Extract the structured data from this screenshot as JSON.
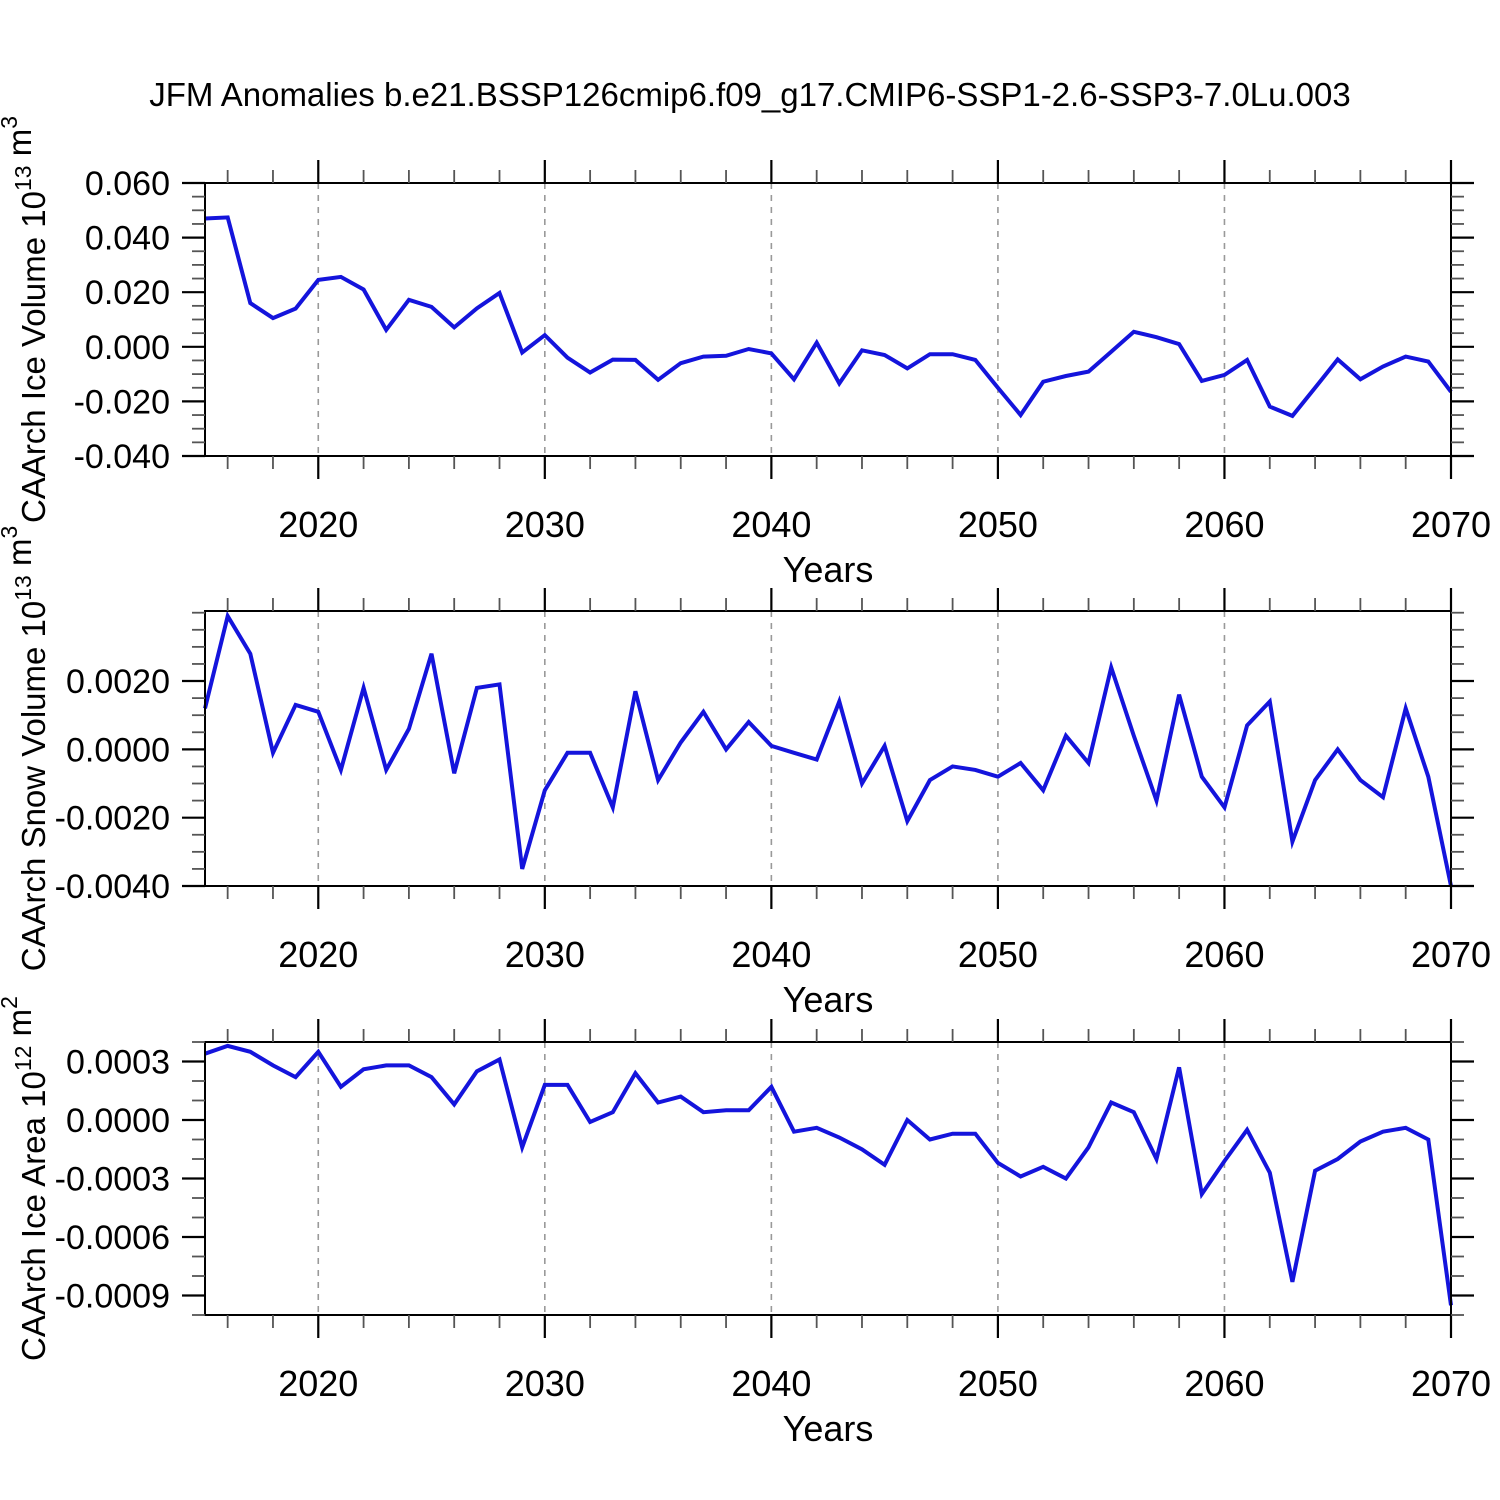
{
  "title": "JFM Anomalies b.e21.BSSP126cmip6.f09_g17.CMIP6-SSP1-2.6-SSP3-7.0Lu.003",
  "chart_data": {
    "type": "line",
    "title": "JFM Anomalies b.e21.BSSP126cmip6.f09_g17.CMIP6-SSP1-2.6-SSP3-7.0Lu.003",
    "line_color": "#1414dc",
    "grid_color": "#999999",
    "axis_color": "#000000",
    "minor_tick_color": "#555555",
    "grid_on": true,
    "years": [
      2015,
      2016,
      2017,
      2018,
      2019,
      2020,
      2021,
      2022,
      2023,
      2024,
      2025,
      2026,
      2027,
      2028,
      2029,
      2030,
      2031,
      2032,
      2033,
      2034,
      2035,
      2036,
      2037,
      2038,
      2039,
      2040,
      2041,
      2042,
      2043,
      2044,
      2045,
      2046,
      2047,
      2048,
      2049,
      2050,
      2051,
      2052,
      2053,
      2054,
      2055,
      2056,
      2057,
      2058,
      2059,
      2060,
      2061,
      2062,
      2063,
      2064,
      2065,
      2066,
      2067,
      2068,
      2069,
      2070
    ],
    "x_axis": {
      "label": "Years",
      "range": [
        2015,
        2070
      ],
      "major_ticks": [
        2020,
        2030,
        2040,
        2050,
        2060,
        2070
      ],
      "major_tick_labels": [
        "2020",
        "2030",
        "2040",
        "2050",
        "2060",
        "2070"
      ],
      "minor_step": 2,
      "gridlines": [
        2020,
        2030,
        2040,
        2050,
        2060
      ]
    },
    "panels": [
      {
        "name": "ice-volume",
        "ylabel": "CAArch Ice Volume 10^13 m^3",
        "ylabel_parts": [
          [
            "CAArch Ice Volume 10",
            false
          ],
          [
            "13",
            true
          ],
          [
            " m",
            false
          ],
          [
            "3",
            true
          ]
        ],
        "xlabel": "Years",
        "ylim": [
          -0.04,
          0.06
        ],
        "y_minor_step": 0.005,
        "yticks": [
          0.06,
          0.04,
          0.02,
          0.0,
          -0.02,
          -0.04
        ],
        "ytick_labels": [
          "0.060",
          "0.040",
          "0.020",
          "0.000",
          "-0.020",
          "-0.040"
        ],
        "values": [
          0.047,
          0.0474,
          0.016,
          0.0105,
          0.014,
          0.0245,
          0.0256,
          0.021,
          0.0062,
          0.0172,
          0.0146,
          0.0071,
          0.0141,
          0.0197,
          -0.0021,
          0.0043,
          -0.004,
          -0.0094,
          -0.0047,
          -0.0048,
          -0.0121,
          -0.006,
          -0.0036,
          -0.0033,
          -0.0008,
          -0.0024,
          -0.0119,
          0.0015,
          -0.0134,
          -0.0013,
          -0.003,
          -0.0079,
          -0.0027,
          -0.0027,
          -0.0048,
          -0.015,
          -0.025,
          -0.0128,
          -0.0107,
          -0.0091,
          -0.0018,
          0.0055,
          0.0035,
          0.001,
          -0.0125,
          -0.0103,
          -0.0048,
          -0.0219,
          -0.0253,
          -0.015,
          -0.0046,
          -0.0119,
          -0.0072,
          -0.0036,
          -0.0054,
          -0.0165
        ]
      },
      {
        "name": "snow-volume",
        "ylabel": "CAArch Snow Volume 10^13 m^3",
        "ylabel_parts": [
          [
            "CAArch Snow Volume 10",
            false
          ],
          [
            "13",
            true
          ],
          [
            " m",
            false
          ],
          [
            "3",
            true
          ]
        ],
        "xlabel": "Years",
        "ylim": [
          -0.004,
          0.00405
        ],
        "y_minor_step": 0.0005,
        "yticks": [
          0.002,
          0.0,
          -0.002,
          -0.004
        ],
        "ytick_labels": [
          "0.0020",
          "0.0000",
          "-0.0020",
          "-0.0040"
        ],
        "values": [
          0.0012,
          0.0039,
          0.0028,
          -0.0001,
          0.0013,
          0.0011,
          -0.0006,
          0.0018,
          -0.0006,
          0.0006,
          0.0028,
          -0.0007,
          0.0018,
          0.0019,
          -0.0035,
          -0.0012,
          -0.0001,
          -0.0001,
          -0.0017,
          0.0017,
          -0.0009,
          0.0002,
          0.0011,
          0.0,
          0.0008,
          0.0001,
          -0.0001,
          -0.0003,
          0.0014,
          -0.001,
          0.0001,
          -0.0021,
          -0.0009,
          -0.0005,
          -0.0006,
          -0.0008,
          -0.0004,
          -0.0012,
          0.0004,
          -0.0004,
          0.0024,
          0.0004,
          -0.0015,
          0.0016,
          -0.0008,
          -0.0017,
          0.0007,
          0.0014,
          -0.0027,
          -0.0009,
          0.0,
          -0.0009,
          -0.0014,
          0.0012,
          -0.0008,
          -0.004
        ]
      },
      {
        "name": "ice-area",
        "ylabel": "CAArch Ice Area 10^12 m^2",
        "ylabel_parts": [
          [
            "CAArch Ice Area 10",
            false
          ],
          [
            "12",
            true
          ],
          [
            " m",
            false
          ],
          [
            "2",
            true
          ]
        ],
        "xlabel": "Years",
        "ylim": [
          -0.001,
          0.0004
        ],
        "y_minor_step": 0.0001,
        "yticks": [
          0.0003,
          0.0,
          -0.0003,
          -0.0006,
          -0.0009
        ],
        "ytick_labels": [
          "0.0003",
          "0.0000",
          "-0.0003",
          "-0.0006",
          "-0.0009"
        ],
        "values": [
          0.00034,
          0.00038,
          0.00035,
          0.00028,
          0.00022,
          0.00035,
          0.00017,
          0.00026,
          0.00028,
          0.00028,
          0.00022,
          8e-05,
          0.00025,
          0.00031,
          -0.00014,
          0.00018,
          0.00018,
          -1e-05,
          4e-05,
          0.00024,
          9e-05,
          0.00012,
          4e-05,
          5e-05,
          5e-05,
          0.00017,
          -6e-05,
          -4e-05,
          -9e-05,
          -0.00015,
          -0.00023,
          0.0,
          -0.0001,
          -7e-05,
          -7e-05,
          -0.00022,
          -0.00029,
          -0.00024,
          -0.0003,
          -0.00014,
          9e-05,
          4e-05,
          -0.0002,
          0.00027,
          -0.00038,
          -0.00021,
          -5e-05,
          -0.00027,
          -0.00083,
          -0.00026,
          -0.0002,
          -0.00011,
          -6e-05,
          -4e-05,
          -0.0001,
          -0.00095
        ]
      }
    ]
  }
}
